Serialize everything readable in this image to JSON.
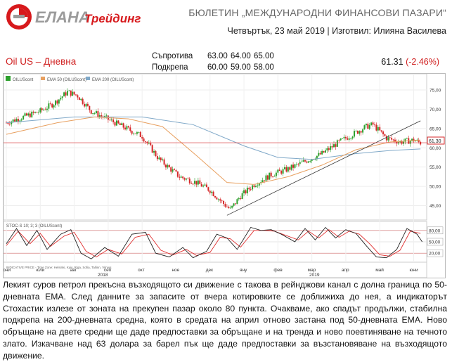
{
  "brand": {
    "name": "ЕЛАНА",
    "suffix": "Трейдинг",
    "colors": {
      "red": "#d7191c",
      "gray": "#9b9b9b"
    }
  },
  "header": {
    "bulletin": "БЮЛЕТИН „МЕЖДУНАРОДНИ ФИНАНСОВИ ПАЗАРИ“",
    "dateline": "Четвъртък, 23 май 2019 | Изготвил: Илияна Василева"
  },
  "instrument": {
    "title": "Oil US – Дневна",
    "last": "61.31",
    "change": "(-2.46%)"
  },
  "levels": {
    "resistance_label": "Съпротива",
    "resistance": [
      "63.00",
      "64.00",
      "65.00"
    ],
    "support_label": "Подкрепа",
    "support": [
      "60.00",
      "59.00",
      "58.00"
    ]
  },
  "chart": {
    "legend": {
      "main": "OILUScont",
      "ema50": "EMA 50 (OILUScont)",
      "ema200": "EMA 200 (OILUScont)",
      "stoch": "STOC-S 10; 3; 3 (OILUScont)"
    },
    "price_axis": [
      "75,00",
      "70,00",
      "65,00",
      "60,00",
      "55,00",
      "50,00",
      "45,00"
    ],
    "price_tag": "61,30",
    "stoch_axis": [
      "80,00",
      "50,00",
      "20,00"
    ],
    "months": [
      "юни",
      "юли",
      "авг",
      "сеп",
      "окт",
      "ное",
      "дек",
      "яну",
      "фев",
      "мар",
      "апр",
      "май",
      "юни"
    ],
    "years": [
      "2018",
      "2019"
    ],
    "source_note": "INDICATIVE PRICE - Time Zone: Helsinki, Kyiv, Riga, Sofia, Tallinn, Vilnius",
    "colors": {
      "up": "#2da02d",
      "down": "#d62728",
      "ema50": "#e8a060",
      "ema200": "#7fa8c8",
      "stoch_k": "#222222",
      "stoch_d": "#e03030"
    }
  },
  "chart_data": {
    "type": "candlestick",
    "symbol": "OILUScont",
    "timeframe": "daily",
    "ylim": [
      42,
      77
    ],
    "months": [
      "юни",
      "юли",
      "авг",
      "сеп",
      "окт",
      "ное",
      "дек",
      "яну",
      "фев",
      "мар",
      "апр",
      "май",
      "юни"
    ],
    "close_path_month_index_value": [
      [
        0,
        66.5
      ],
      [
        0.5,
        68.0
      ],
      [
        1,
        69.5
      ],
      [
        1.4,
        71.5
      ],
      [
        1.8,
        74.5
      ],
      [
        2.1,
        73.5
      ],
      [
        2.5,
        69.5
      ],
      [
        3.2,
        66.5
      ],
      [
        4.0,
        63.0
      ],
      [
        4.5,
        57.0
      ],
      [
        5.1,
        52.5
      ],
      [
        5.6,
        51.0
      ],
      [
        6.0,
        49.0
      ],
      [
        6.4,
        45.5
      ],
      [
        6.6,
        44.0
      ],
      [
        6.9,
        47.5
      ],
      [
        7.3,
        50.5
      ],
      [
        7.8,
        53.0
      ],
      [
        8.3,
        54.5
      ],
      [
        8.8,
        56.5
      ],
      [
        9.3,
        58.5
      ],
      [
        9.8,
        61.5
      ],
      [
        10.3,
        64.0
      ],
      [
        10.6,
        65.5
      ],
      [
        10.8,
        66.0
      ],
      [
        11.2,
        62.5
      ],
      [
        11.6,
        61.5
      ],
      [
        12.0,
        62.0
      ],
      [
        12.2,
        61.3
      ]
    ],
    "trendline": [
      [
        6.5,
        42.5
      ],
      [
        12.2,
        67.0
      ]
    ],
    "ema50": [
      [
        0,
        63.5
      ],
      [
        1.5,
        66.5
      ],
      [
        2.6,
        68.0
      ],
      [
        3.6,
        67.5
      ],
      [
        4.6,
        65.5
      ],
      [
        5.6,
        58.0
      ],
      [
        6.5,
        51.0
      ],
      [
        7.3,
        50.5
      ],
      [
        8.3,
        52.5
      ],
      [
        9.3,
        55.5
      ],
      [
        10.3,
        59.5
      ],
      [
        11.3,
        61.5
      ],
      [
        12.2,
        62.0
      ]
    ],
    "ema200": [
      [
        0,
        66.5
      ],
      [
        2,
        68.0
      ],
      [
        4,
        68.0
      ],
      [
        5.5,
        66.0
      ],
      [
        7,
        60.5
      ],
      [
        8,
        57.5
      ],
      [
        9,
        57.0
      ],
      [
        10.3,
        58.5
      ],
      [
        11.3,
        59.3
      ],
      [
        12.2,
        59.7
      ]
    ],
    "stochastic": {
      "levels": [
        80,
        50,
        20
      ],
      "k": [
        [
          0,
          45
        ],
        [
          0.3,
          85
        ],
        [
          0.6,
          40
        ],
        [
          0.9,
          80
        ],
        [
          1.2,
          30
        ],
        [
          1.6,
          70
        ],
        [
          1.9,
          82
        ],
        [
          2.2,
          20
        ],
        [
          2.5,
          5
        ],
        [
          2.9,
          35
        ],
        [
          3.3,
          12
        ],
        [
          3.7,
          70
        ],
        [
          4.1,
          75
        ],
        [
          4.4,
          20
        ],
        [
          4.8,
          10
        ],
        [
          5.2,
          35
        ],
        [
          5.5,
          8
        ],
        [
          5.9,
          25
        ],
        [
          6.2,
          70
        ],
        [
          6.5,
          60
        ],
        [
          6.8,
          30
        ],
        [
          7.2,
          88
        ],
        [
          7.5,
          80
        ],
        [
          7.8,
          82
        ],
        [
          8.1,
          70
        ],
        [
          8.5,
          50
        ],
        [
          8.8,
          85
        ],
        [
          9.1,
          55
        ],
        [
          9.4,
          88
        ],
        [
          9.7,
          60
        ],
        [
          10.0,
          82
        ],
        [
          10.3,
          72
        ],
        [
          10.6,
          40
        ],
        [
          10.9,
          10
        ],
        [
          11.2,
          8
        ],
        [
          11.5,
          30
        ],
        [
          11.8,
          85
        ],
        [
          12.1,
          70
        ],
        [
          12.25,
          50
        ]
      ],
      "d": [
        [
          0,
          40
        ],
        [
          0.35,
          78
        ],
        [
          0.7,
          45
        ],
        [
          1.0,
          72
        ],
        [
          1.3,
          38
        ],
        [
          1.7,
          65
        ],
        [
          2.0,
          75
        ],
        [
          2.35,
          25
        ],
        [
          2.65,
          10
        ],
        [
          3.0,
          30
        ],
        [
          3.4,
          18
        ],
        [
          3.8,
          62
        ],
        [
          4.2,
          70
        ],
        [
          4.55,
          28
        ],
        [
          4.9,
          15
        ],
        [
          5.3,
          30
        ],
        [
          5.6,
          14
        ],
        [
          6.0,
          22
        ],
        [
          6.3,
          62
        ],
        [
          6.6,
          58
        ],
        [
          6.9,
          36
        ],
        [
          7.3,
          80
        ],
        [
          7.6,
          80
        ],
        [
          7.9,
          78
        ],
        [
          8.2,
          68
        ],
        [
          8.6,
          55
        ],
        [
          8.9,
          78
        ],
        [
          9.2,
          60
        ],
        [
          9.5,
          82
        ],
        [
          9.8,
          62
        ],
        [
          10.1,
          78
        ],
        [
          10.4,
          70
        ],
        [
          10.7,
          45
        ],
        [
          11.0,
          16
        ],
        [
          11.3,
          12
        ],
        [
          11.6,
          28
        ],
        [
          11.9,
          78
        ],
        [
          12.2,
          72
        ]
      ]
    },
    "last_value": 61.31
  },
  "article": {
    "text": "Лекият суров петрол прекъсна възходящото си движение с такова в рейнджови канал с долна граница по 50-дневната ЕМА. След данните за запасите от вчера котировките се доближиха до нея, а индикаторът Стохастик излезе от зоната на прекупен пазар около 80 пункта. Очакваме, ако спадът продължи, стабилна подкрепа на 200-дневната средна, която в средата на април отново застана под 50-дневната ЕМА. Ново обръщане на двете средни ще даде предпоставки за обръщане и на тренда и ново поевтиняване на течното злато. Изкачване над 63 долара за барел пък ще даде предпоставки за възстановяване на възходящото движение."
  }
}
